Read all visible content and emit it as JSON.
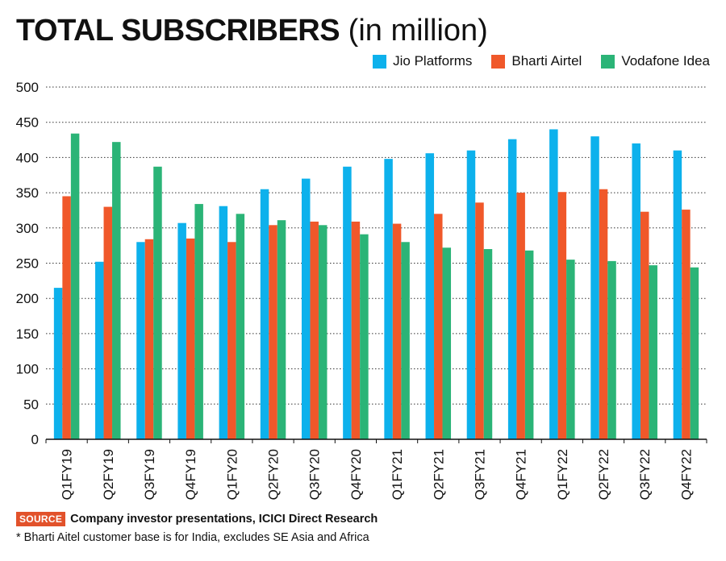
{
  "header": {
    "title_bold": "TOTAL SUBSCRIBERS",
    "title_rest": "(in million)"
  },
  "colors": {
    "jio": "#0db1ec",
    "airtel": "#f0582a",
    "vodafone": "#2bb477"
  },
  "chart_data": {
    "type": "bar",
    "title": "TOTAL SUBSCRIBERS (in million)",
    "xlabel": "",
    "ylabel": "",
    "ylim": [
      0,
      500
    ],
    "yticks": [
      0,
      50,
      100,
      150,
      200,
      250,
      300,
      350,
      400,
      450,
      500
    ],
    "grid": true,
    "legend_position": "top-right",
    "categories": [
      "Q1FY19",
      "Q2FY19",
      "Q3FY19",
      "Q4FY19",
      "Q1FY20",
      "Q2FY20",
      "Q3FY20",
      "Q4FY20",
      "Q1FY21",
      "Q2FY21",
      "Q3FY21",
      "Q4FY21",
      "Q1FY22",
      "Q2FY22",
      "Q3FY22",
      "Q4FY22"
    ],
    "series": [
      {
        "name": "Jio Platforms",
        "key": "jio",
        "values": [
          215,
          252,
          280,
          307,
          331,
          355,
          370,
          387,
          398,
          406,
          410,
          426,
          440,
          430,
          420,
          410
        ]
      },
      {
        "name": "Bharti Airtel",
        "key": "airtel",
        "values": [
          345,
          330,
          284,
          285,
          280,
          304,
          309,
          309,
          306,
          320,
          336,
          350,
          351,
          355,
          323,
          326
        ]
      },
      {
        "name": "Vodafone Idea",
        "key": "vodafone",
        "values": [
          434,
          422,
          387,
          334,
          320,
          311,
          304,
          291,
          280,
          272,
          270,
          268,
          255,
          253,
          247,
          244
        ]
      }
    ]
  },
  "footer": {
    "source_tag": "SOURCE",
    "source_text": "Company investor presentations, ICICI Direct Research",
    "footnote": "* Bharti Aitel customer base is for India, excludes SE Asia and Africa"
  }
}
